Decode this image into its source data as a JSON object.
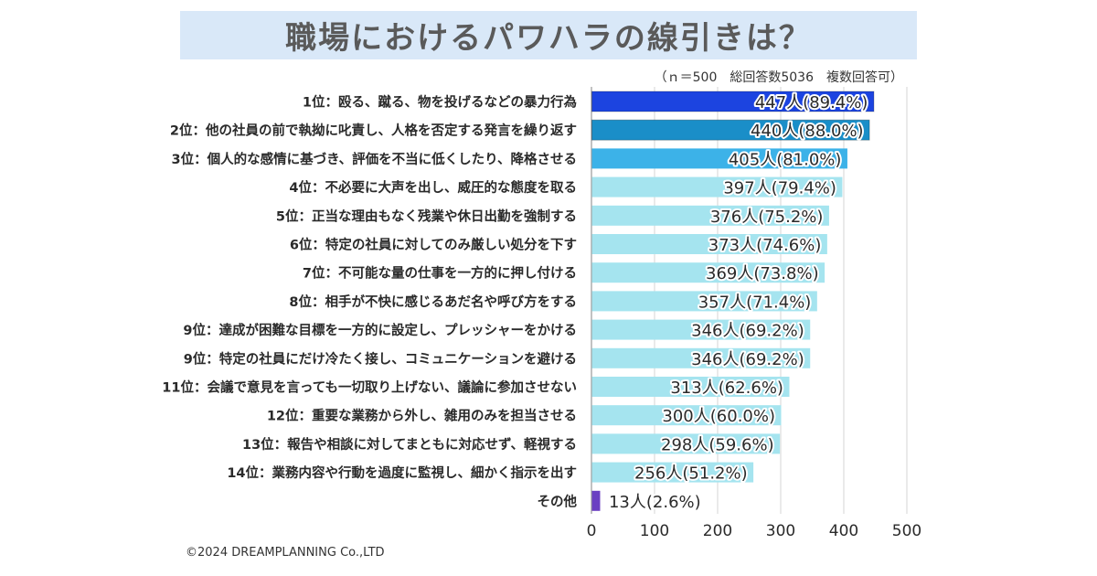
{
  "header": {
    "title": "職場におけるパワハラの線引きは？",
    "subtitle": "（ｎ＝500　総回答数5036　複数回答可）"
  },
  "footer": {
    "copyright": "©2024 DREAMPLANNING Co.,LTD"
  },
  "colors": {
    "rank1": "#1c44e0",
    "rank2": "#1a8ec8",
    "rank3": "#3cb2e8",
    "others": "#a5e4ef",
    "other_category": "#6a3fc2",
    "title_bg": "#d9e8f8",
    "grid": "#d6d6d6",
    "axis": "#9a9a9a"
  },
  "chart_data": {
    "type": "bar",
    "orientation": "horizontal",
    "title": "職場におけるパワハラの線引きは？",
    "note": "（ｎ＝500　総回答数5036　複数回答可）",
    "xlabel": "",
    "ylabel": "",
    "xlim": [
      0,
      500
    ],
    "xticks": [
      0,
      100,
      200,
      300,
      400,
      500
    ],
    "grid": true,
    "categories": [
      "1位：殴る、蹴る、物を投げるなどの暴力行為",
      "2位：他の社員の前で執拗に叱責し、人格を否定する発言を繰り返す",
      "3位：個人的な感情に基づき、評価を不当に低くしたり、降格させる",
      "4位：不必要に大声を出し、威圧的な態度を取る",
      "5位：正当な理由もなく残業や休日出勤を強制する",
      "6位：特定の社員に対してのみ厳しい処分を下す",
      "7位：不可能な量の仕事を一方的に押し付ける",
      "8位：相手が不快に感じるあだ名や呼び方をする",
      "9位：達成が困難な目標を一方的に設定し、プレッシャーをかける",
      "9位：特定の社員にだけ冷たく接し、コミュニケーションを避ける",
      "11位：会議で意見を言っても一切取り上げない、議論に参加させない",
      "12位：重要な業務から外し、雑用のみを担当させる",
      "13位：報告や相談に対してまともに対応せず、軽視する",
      "14位：業務内容や行動を過度に監視し、細かく指示を出す",
      "その他"
    ],
    "values": [
      447,
      440,
      405,
      397,
      376,
      373,
      369,
      357,
      346,
      346,
      313,
      300,
      298,
      256,
      13
    ],
    "percentages": [
      89.4,
      88.0,
      81.0,
      79.4,
      75.2,
      74.6,
      73.8,
      71.4,
      69.2,
      69.2,
      62.6,
      60.0,
      59.6,
      51.2,
      2.6
    ],
    "data_labels": [
      "447人(89.4%)",
      "440人(88.0%)",
      "405人(81.0%)",
      "397人(79.4%)",
      "376人(75.2%)",
      "373人(74.6%)",
      "369人(73.8%)",
      "357人(71.4%)",
      "346人(69.2%)",
      "346人(69.2%)",
      "313人(62.6%)",
      "300人(60.0%)",
      "298人(59.6%)",
      "256人(51.2%)",
      "13人(2.6%)"
    ],
    "bar_color_keys": [
      "rank1",
      "rank2",
      "rank3",
      "others",
      "others",
      "others",
      "others",
      "others",
      "others",
      "others",
      "others",
      "others",
      "others",
      "others",
      "other_category"
    ]
  }
}
